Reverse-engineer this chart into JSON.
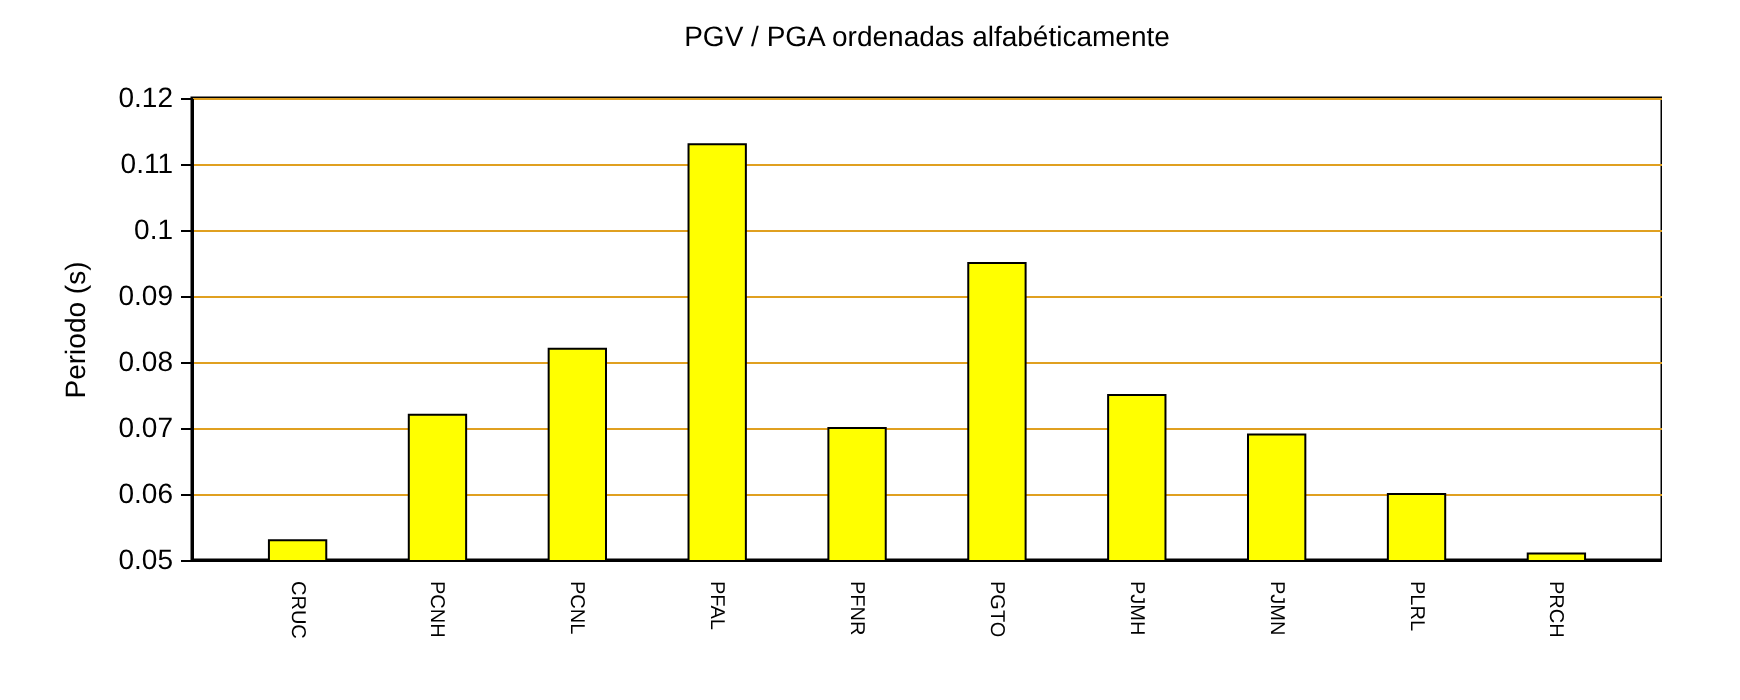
{
  "chart_data": {
    "type": "bar",
    "title": "PGV / PGA ordenadas alfabéticamente",
    "ylabel": "Periodo (s)",
    "categories": [
      "CRUC",
      "PCNH",
      "PCNL",
      "PFAL",
      "PFNR",
      "PGTO",
      "PJMH",
      "PJMN",
      "PLRL",
      "PRCH"
    ],
    "values": [
      0.053,
      0.072,
      0.082,
      0.113,
      0.07,
      0.095,
      0.075,
      0.069,
      0.06,
      0.051
    ],
    "color": "#ffff00",
    "ylim": [
      0.05,
      0.12
    ],
    "yticks": [
      0.05,
      0.06,
      0.07,
      0.08,
      0.09,
      0.1,
      0.11,
      0.12
    ],
    "grid": "y"
  }
}
